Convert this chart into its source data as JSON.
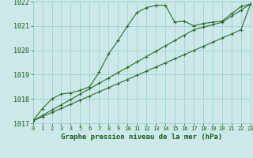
{
  "hours": [
    0,
    1,
    2,
    3,
    4,
    5,
    6,
    7,
    8,
    9,
    10,
    11,
    12,
    13,
    14,
    15,
    16,
    17,
    18,
    19,
    20,
    21,
    22,
    23
  ],
  "pressure_main": [
    1017.1,
    1017.6,
    1018.0,
    1018.2,
    1018.25,
    1018.35,
    1018.5,
    1019.1,
    1019.85,
    1020.4,
    1021.0,
    1021.55,
    1021.75,
    1021.85,
    1021.85,
    1021.15,
    1021.2,
    1021.0,
    1021.1,
    1021.15,
    1021.2,
    1021.5,
    1021.8,
    1021.9
  ],
  "pressure_trend1": [
    1017.1,
    1017.27,
    1017.44,
    1017.61,
    1017.78,
    1017.95,
    1018.12,
    1018.29,
    1018.46,
    1018.63,
    1018.8,
    1018.97,
    1019.14,
    1019.31,
    1019.48,
    1019.65,
    1019.82,
    1019.99,
    1020.16,
    1020.33,
    1020.5,
    1020.67,
    1020.84,
    1021.9
  ],
  "pressure_trend2": [
    1017.1,
    1017.32,
    1017.54,
    1017.76,
    1017.98,
    1018.2,
    1018.42,
    1018.64,
    1018.86,
    1019.08,
    1019.3,
    1019.52,
    1019.74,
    1019.96,
    1020.18,
    1020.4,
    1020.62,
    1020.84,
    1020.95,
    1021.05,
    1021.15,
    1021.4,
    1021.65,
    1021.9
  ],
  "ylim": [
    1017,
    1022
  ],
  "yticks": [
    1017,
    1018,
    1019,
    1020,
    1021,
    1022
  ],
  "xticks": [
    0,
    1,
    2,
    3,
    4,
    5,
    6,
    7,
    8,
    9,
    10,
    11,
    12,
    13,
    14,
    15,
    16,
    17,
    18,
    19,
    20,
    21,
    22,
    23
  ],
  "line_color": "#2d6a2d",
  "bg_color": "#cce8e8",
  "grid_color": "#99cccc",
  "xlabel": "Graphe pression niveau de la mer (hPa)",
  "tick_color": "#1a5c1a",
  "markersize": 3.0,
  "linewidth": 0.8
}
